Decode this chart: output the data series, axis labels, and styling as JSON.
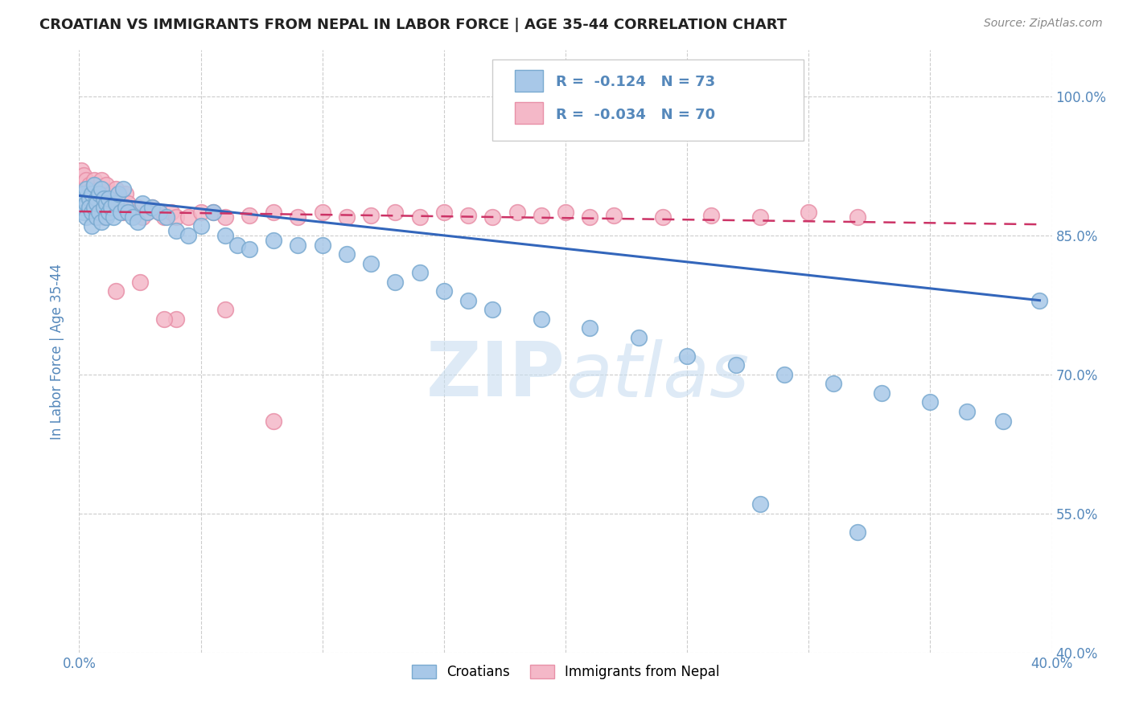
{
  "title": "CROATIAN VS IMMIGRANTS FROM NEPAL IN LABOR FORCE | AGE 35-44 CORRELATION CHART",
  "source": "Source: ZipAtlas.com",
  "ylabel": "In Labor Force | Age 35-44",
  "xlim": [
    0.0,
    0.4
  ],
  "ylim": [
    0.4,
    1.05
  ],
  "xticks": [
    0.0,
    0.05,
    0.1,
    0.15,
    0.2,
    0.25,
    0.3,
    0.35,
    0.4
  ],
  "yticks": [
    0.4,
    0.55,
    0.7,
    0.85,
    1.0
  ],
  "yticklabels_right": [
    "40.0%",
    "55.0%",
    "70.0%",
    "85.0%",
    "100.0%"
  ],
  "blue_color": "#a8c8e8",
  "pink_color": "#f4b8c8",
  "blue_edge_color": "#7aaad0",
  "pink_edge_color": "#e890a8",
  "blue_line_color": "#3366bb",
  "pink_line_color": "#cc3366",
  "legend_blue_R": "-0.124",
  "legend_blue_N": "73",
  "legend_pink_R": "-0.034",
  "legend_pink_N": "70",
  "blue_trendline_x": [
    0.0,
    0.395
  ],
  "blue_trendline_y": [
    0.893,
    0.78
  ],
  "pink_trendline_x": [
    0.0,
    0.395
  ],
  "pink_trendline_y": [
    0.876,
    0.862
  ],
  "background_color": "#ffffff",
  "grid_color": "#cccccc",
  "title_color": "#222222",
  "axis_label_color": "#5588bb",
  "source_color": "#888888"
}
